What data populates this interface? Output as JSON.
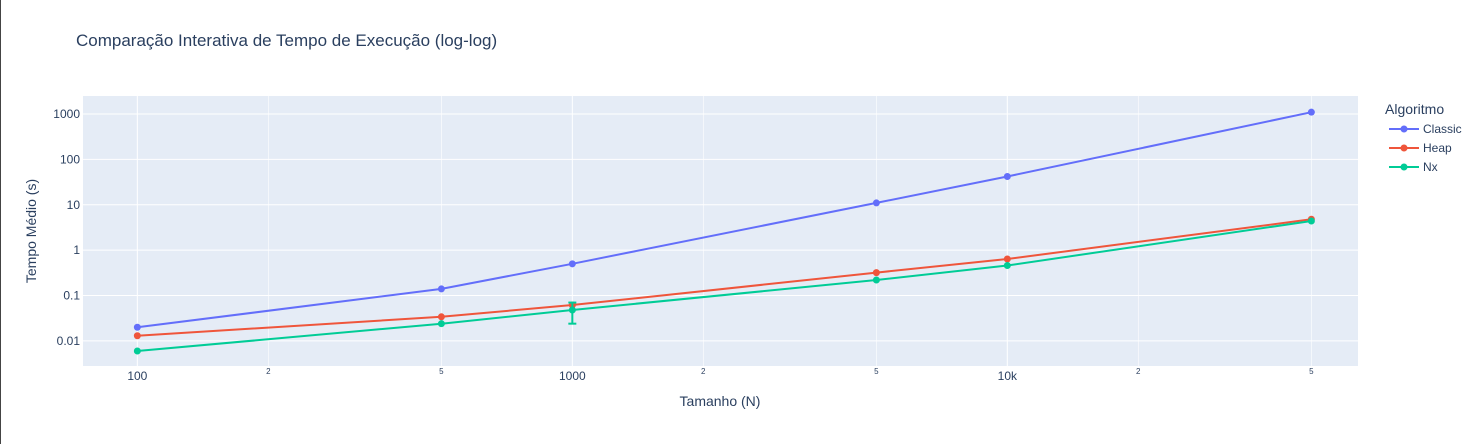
{
  "chart_data": {
    "type": "line",
    "title": "Comparação Interativa de Tempo de Execução (log-log)",
    "xlabel": "Tamanho (N)",
    "ylabel": "Tempo Médio (s)",
    "x_scale": "log",
    "y_scale": "log",
    "xlim": [
      75,
      64000
    ],
    "ylim": [
      0.0028,
      2500
    ],
    "x_ticks": [
      {
        "value": 100,
        "label": "100",
        "major": true
      },
      {
        "value": 200,
        "label": "2",
        "major": false
      },
      {
        "value": 500,
        "label": "5",
        "major": false
      },
      {
        "value": 1000,
        "label": "1000",
        "major": true
      },
      {
        "value": 2000,
        "label": "2",
        "major": false
      },
      {
        "value": 5000,
        "label": "5",
        "major": false
      },
      {
        "value": 10000,
        "label": "10k",
        "major": true
      },
      {
        "value": 20000,
        "label": "2",
        "major": false
      },
      {
        "value": 50000,
        "label": "5",
        "major": false
      }
    ],
    "y_ticks": [
      {
        "value": 0.01,
        "label": "0.01"
      },
      {
        "value": 0.1,
        "label": "0.1"
      },
      {
        "value": 1,
        "label": "1"
      },
      {
        "value": 10,
        "label": "10"
      },
      {
        "value": 100,
        "label": "100"
      },
      {
        "value": 1000,
        "label": "1000"
      }
    ],
    "grid": true,
    "legend_title": "Algoritmo",
    "legend_position": "right",
    "x": [
      100,
      500,
      1000,
      5000,
      10000,
      50000
    ],
    "series": [
      {
        "name": "Classic",
        "color": "#636efa",
        "values": [
          0.02,
          0.14,
          0.5,
          11,
          42,
          1100
        ]
      },
      {
        "name": "Heap",
        "color": "#ef553b",
        "values": [
          0.013,
          0.034,
          0.062,
          0.32,
          0.64,
          4.8
        ]
      },
      {
        "name": "Nx",
        "color": "#00cc96",
        "values": [
          0.006,
          0.024,
          0.048,
          0.22,
          0.46,
          4.4
        ],
        "error_bars": [
          {
            "x": 1000,
            "low": 0.024,
            "high": 0.07
          }
        ]
      }
    ]
  }
}
